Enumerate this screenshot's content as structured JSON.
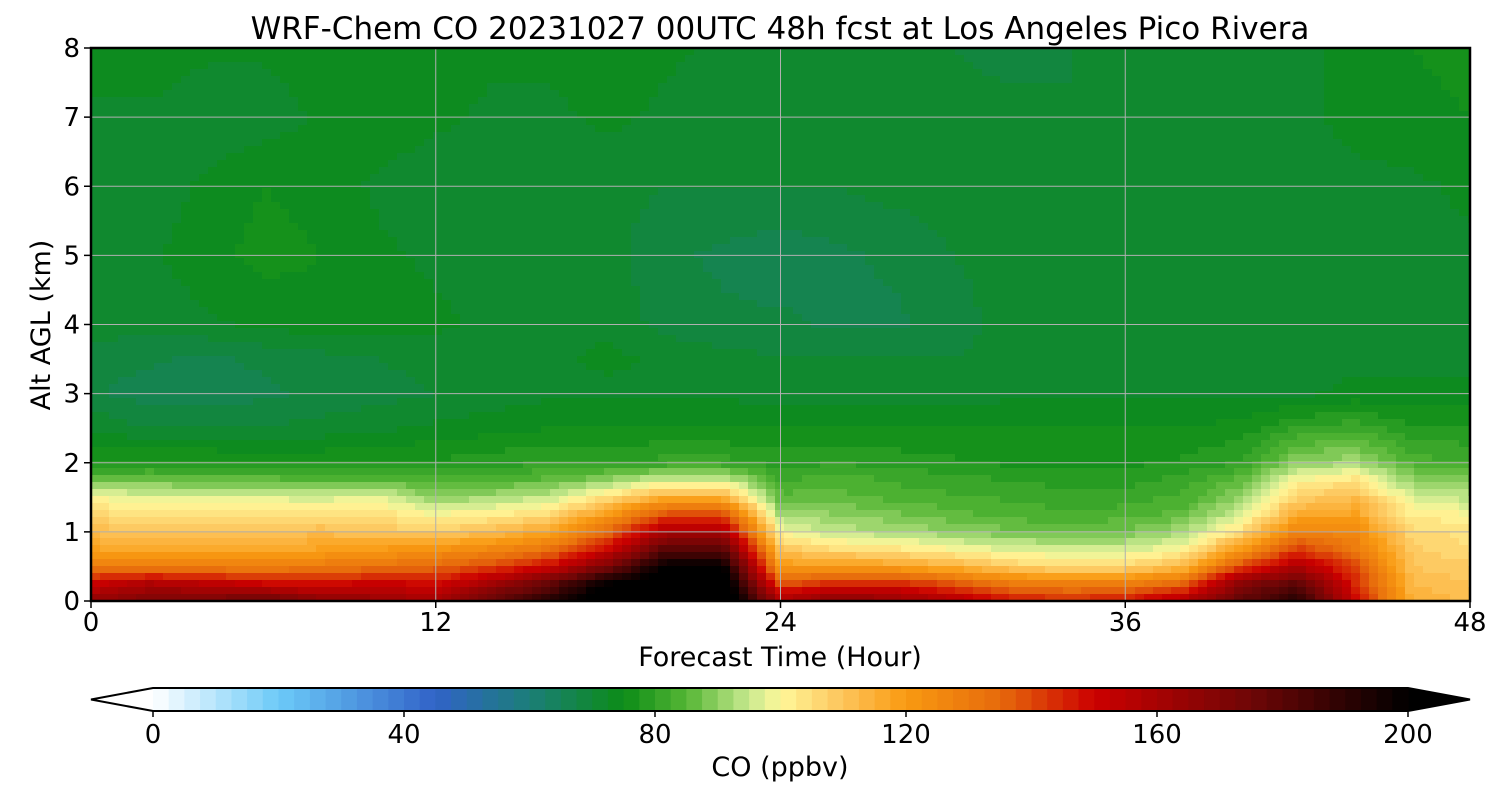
{
  "chart_data": {
    "type": "heatmap",
    "title": "WRF-Chem CO  20231027 00UTC 48h fcst at Los Angeles Pico Rivera",
    "xlabel": "Forecast Time (Hour)",
    "ylabel": "Alt AGL (km)",
    "xlim": [
      0,
      48
    ],
    "ylim": [
      0,
      8
    ],
    "xticks": [
      0,
      12,
      24,
      36,
      48
    ],
    "yticks": [
      0,
      1,
      2,
      3,
      4,
      5,
      6,
      7,
      8
    ],
    "grid": true,
    "colorbar": {
      "label": "CO  (ppbv)",
      "min": 0,
      "max": 200,
      "step": 2.5,
      "ticks": [
        0,
        40,
        80,
        120,
        160,
        200
      ],
      "extend": "both",
      "stops": [
        {
          "v": 0,
          "c": "#ffffff"
        },
        {
          "v": 20,
          "c": "#6ccaf8"
        },
        {
          "v": 45,
          "c": "#3163c8"
        },
        {
          "v": 60,
          "c": "#1b7e78"
        },
        {
          "v": 75,
          "c": "#0c8c17"
        },
        {
          "v": 85,
          "c": "#55b635"
        },
        {
          "v": 95,
          "c": "#c8e98f"
        },
        {
          "v": 100,
          "c": "#fff79a"
        },
        {
          "v": 110,
          "c": "#fdc45a"
        },
        {
          "v": 120,
          "c": "#f99a11"
        },
        {
          "v": 135,
          "c": "#e66a0c"
        },
        {
          "v": 150,
          "c": "#cc0000"
        },
        {
          "v": 175,
          "c": "#6e0606"
        },
        {
          "v": 200,
          "c": "#000000"
        }
      ]
    },
    "hours": [
      0,
      2,
      4,
      6,
      8,
      10,
      12,
      14,
      16,
      18,
      20,
      22,
      24,
      26,
      28,
      30,
      32,
      34,
      36,
      38,
      40,
      42,
      44,
      46,
      48
    ],
    "altitudes_km": [
      0,
      0.25,
      0.5,
      0.75,
      1,
      1.25,
      1.5,
      1.75,
      2,
      2.5,
      3,
      3.5,
      4,
      5,
      6,
      7,
      8
    ],
    "co_ppbv": [
      [
        165,
        172,
        172,
        178,
        168,
        165,
        160,
        178,
        192,
        210,
        215,
        215,
        160,
        170,
        165,
        158,
        148,
        145,
        148,
        158,
        178,
        192,
        150,
        115,
        112
      ],
      [
        150,
        158,
        155,
        150,
        148,
        152,
        148,
        162,
        178,
        200,
        210,
        210,
        138,
        145,
        145,
        138,
        130,
        128,
        128,
        135,
        168,
        180,
        145,
        112,
        110
      ],
      [
        130,
        128,
        128,
        128,
        130,
        132,
        135,
        140,
        150,
        172,
        200,
        200,
        120,
        120,
        118,
        114,
        108,
        105,
        106,
        112,
        140,
        158,
        140,
        110,
        108
      ],
      [
        118,
        116,
        116,
        116,
        118,
        120,
        122,
        126,
        132,
        150,
        180,
        180,
        110,
        105,
        103,
        100,
        97,
        96,
        96,
        100,
        120,
        142,
        130,
        108,
        105
      ],
      [
        112,
        110,
        110,
        110,
        112,
        110,
        108,
        112,
        118,
        135,
        160,
        160,
        100,
        94,
        93,
        90,
        88,
        87,
        88,
        92,
        105,
        128,
        125,
        106,
        104
      ],
      [
        106,
        104,
        105,
        104,
        105,
        104,
        100,
        102,
        106,
        120,
        140,
        140,
        92,
        90,
        88,
        86,
        84,
        83,
        84,
        86,
        96,
        116,
        118,
        102,
        100
      ],
      [
        100,
        97,
        98,
        97,
        96,
        98,
        90,
        92,
        95,
        105,
        115,
        115,
        86,
        86,
        84,
        83,
        82,
        81,
        81,
        83,
        90,
        108,
        112,
        96,
        94
      ],
      [
        86,
        87,
        86,
        86,
        85,
        85,
        83,
        84,
        86,
        90,
        96,
        96,
        82,
        84,
        82,
        81,
        80,
        79,
        79,
        81,
        86,
        100,
        104,
        90,
        88
      ],
      [
        78,
        78,
        78,
        77,
        77,
        78,
        78,
        79,
        80,
        80,
        81,
        81,
        79,
        80,
        79,
        78,
        77,
        77,
        77,
        78,
        80,
        90,
        92,
        84,
        82
      ],
      [
        72,
        70,
        70,
        70,
        71,
        72,
        73,
        74,
        75,
        75,
        75,
        75,
        75,
        75,
        75,
        75,
        75,
        75,
        75,
        75,
        76,
        80,
        82,
        78,
        78
      ],
      [
        68,
        66,
        66,
        67,
        68,
        69,
        70,
        71,
        72,
        72,
        72,
        72,
        71,
        71,
        71,
        71,
        72,
        72,
        72,
        72,
        72,
        72,
        73,
        73,
        73
      ],
      [
        69,
        68,
        67,
        68,
        69,
        70,
        71,
        72,
        72,
        73,
        72,
        71,
        70,
        70,
        70,
        70,
        71,
        72,
        72,
        72,
        72,
        72,
        72,
        72,
        72
      ],
      [
        71,
        71,
        72,
        73,
        74,
        74,
        73,
        72,
        72,
        72,
        69,
        68,
        68,
        67,
        67,
        69,
        71,
        72,
        72,
        72,
        72,
        72,
        72,
        72,
        72
      ],
      [
        72,
        72,
        74,
        76,
        75,
        73,
        72,
        71,
        71,
        71,
        68,
        67,
        66,
        67,
        68,
        70,
        71,
        72,
        72,
        72,
        72,
        72,
        72,
        72,
        72
      ],
      [
        70,
        71,
        73,
        75,
        74,
        72,
        71,
        71,
        71,
        71,
        70,
        70,
        70,
        70,
        71,
        71,
        71,
        71,
        72,
        72,
        72,
        72,
        72,
        72,
        73
      ],
      [
        72,
        72,
        71,
        71,
        73,
        74,
        73,
        72,
        72,
        73,
        72,
        71,
        71,
        71,
        71,
        71,
        71,
        70,
        71,
        72,
        72,
        72,
        73,
        74,
        75
      ],
      [
        74,
        74,
        73,
        73,
        74,
        75,
        74,
        73,
        73,
        74,
        73,
        72,
        72,
        72,
        71,
        70,
        69,
        70,
        71,
        71,
        72,
        72,
        73,
        75,
        76
      ]
    ]
  }
}
